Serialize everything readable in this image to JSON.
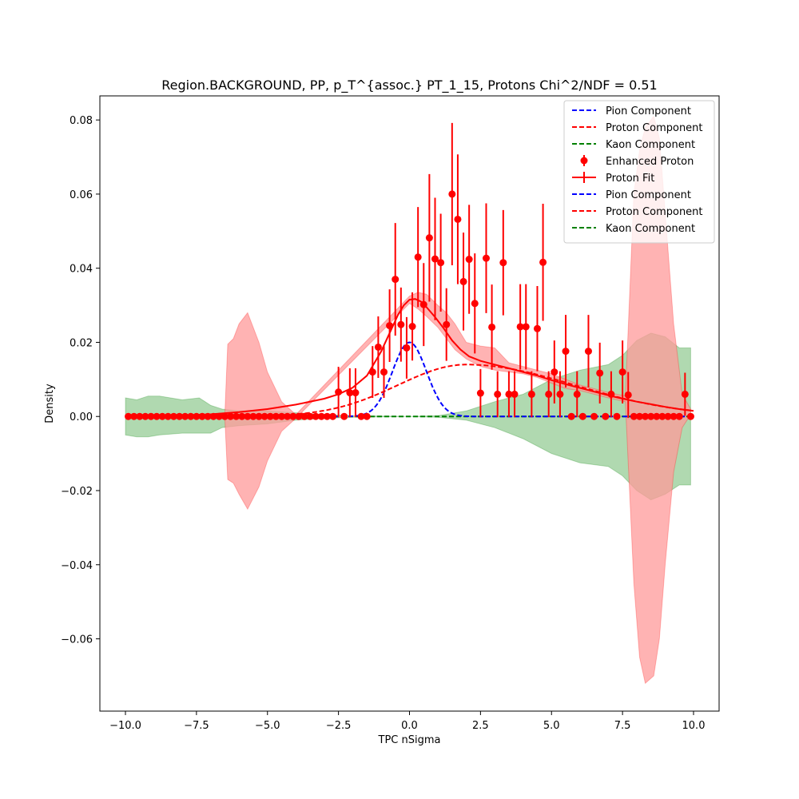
{
  "chart_data": {
    "type": "scatter",
    "title": "Region.BACKGROUND, PP, p_T^{assoc.} PT_1_15, Protons Chi^2/NDF = 0.51",
    "xlabel": "TPC nSigma",
    "ylabel": "Density",
    "xlim": [
      -10.9,
      10.9
    ],
    "ylim": [
      -0.0795,
      0.0865
    ],
    "xticks": [
      -10.0,
      -7.5,
      -5.0,
      -2.5,
      0.0,
      2.5,
      5.0,
      7.5,
      10.0
    ],
    "xtick_labels": [
      "−10.0",
      "−7.5",
      "−5.0",
      "−2.5",
      "0.0",
      "2.5",
      "5.0",
      "7.5",
      "10.0"
    ],
    "yticks": [
      -0.06,
      -0.04,
      -0.02,
      0.0,
      0.02,
      0.04,
      0.06,
      0.08
    ],
    "ytick_labels": [
      "−0.06",
      "−0.04",
      "−0.02",
      "0.00",
      "0.02",
      "0.04",
      "0.06",
      "0.08"
    ],
    "grid": false,
    "legend_position": "upper right",
    "legend": [
      {
        "label": "Pion Component",
        "color": "#0000ff",
        "style": "dashed"
      },
      {
        "label": "Proton Component",
        "color": "#ff0000",
        "style": "dashed"
      },
      {
        "label": "Kaon Component",
        "color": "#008000",
        "style": "dashed"
      },
      {
        "label": "Enhanced Proton",
        "color": "#ff0000",
        "style": "errorbar"
      },
      {
        "label": "Proton Fit",
        "color": "#ff0000",
        "style": "line"
      },
      {
        "label": "Pion Component",
        "color": "#0000ff",
        "style": "dashed"
      },
      {
        "label": "Proton Component",
        "color": "#ff0000",
        "style": "dashed"
      },
      {
        "label": "Kaon Component",
        "color": "#008000",
        "style": "dashed"
      }
    ],
    "models": {
      "pion": {
        "amplitude": 0.02,
        "mean": 0.0,
        "sigma": 0.6
      },
      "proton": {
        "amplitude": 0.014,
        "mean": 2.0,
        "sigma_left": 2.4,
        "sigma_right": 3.8
      },
      "kaon": {
        "value": 0.0
      }
    },
    "red_band": [
      {
        "x": -6.5,
        "low": -0.0005,
        "high": 0.0005
      },
      {
        "x": -6.4,
        "low": -0.017,
        "high": 0.0195
      },
      {
        "x": -6.2,
        "low": -0.018,
        "high": 0.021
      },
      {
        "x": -6.0,
        "low": -0.021,
        "high": 0.025
      },
      {
        "x": -5.7,
        "low": -0.025,
        "high": 0.028
      },
      {
        "x": -5.3,
        "low": -0.019,
        "high": 0.02
      },
      {
        "x": -5.0,
        "low": -0.012,
        "high": 0.012
      },
      {
        "x": -4.5,
        "low": -0.004,
        "high": 0.004
      },
      {
        "x": -4.0,
        "low": -0.0005,
        "high": 0.0005
      },
      {
        "x": 0.0,
        "low": 0.0305,
        "high": 0.0325
      },
      {
        "x": 0.3,
        "low": 0.029,
        "high": 0.0335
      },
      {
        "x": 0.6,
        "low": 0.027,
        "high": 0.033
      },
      {
        "x": 1.0,
        "low": 0.024,
        "high": 0.03
      },
      {
        "x": 1.3,
        "low": 0.021,
        "high": 0.028
      },
      {
        "x": 1.6,
        "low": 0.018,
        "high": 0.025
      },
      {
        "x": 2.0,
        "low": 0.0155,
        "high": 0.02
      },
      {
        "x": 2.5,
        "low": 0.0135,
        "high": 0.019
      },
      {
        "x": 3.0,
        "low": 0.0125,
        "high": 0.0185
      },
      {
        "x": 3.5,
        "low": 0.012,
        "high": 0.0145
      },
      {
        "x": 4.0,
        "low": 0.0115,
        "high": 0.0135
      },
      {
        "x": 4.5,
        "low": 0.0105,
        "high": 0.0125
      },
      {
        "x": 5.0,
        "low": 0.009,
        "high": 0.0115
      },
      {
        "x": 5.5,
        "low": 0.0075,
        "high": 0.01
      },
      {
        "x": 6.0,
        "low": 0.007,
        "high": 0.0085
      },
      {
        "x": 7.0,
        "low": 0.005,
        "high": 0.0065
      },
      {
        "x": 7.6,
        "low": 0.004,
        "high": 0.0055
      },
      {
        "x": 7.9,
        "low": -0.045,
        "high": 0.06
      },
      {
        "x": 8.1,
        "low": -0.065,
        "high": 0.072
      },
      {
        "x": 8.3,
        "low": -0.072,
        "high": 0.078
      },
      {
        "x": 8.6,
        "low": -0.07,
        "high": 0.081
      },
      {
        "x": 8.8,
        "low": -0.06,
        "high": 0.075
      },
      {
        "x": 9.0,
        "low": -0.04,
        "high": 0.055
      },
      {
        "x": 9.3,
        "low": -0.015,
        "high": 0.025
      },
      {
        "x": 9.6,
        "low": -0.003,
        "high": 0.006
      },
      {
        "x": 9.9,
        "low": 0.0005,
        "high": 0.002
      }
    ],
    "green_band": [
      {
        "x": -10.0,
        "low": -0.005,
        "high": 0.005
      },
      {
        "x": -9.6,
        "low": -0.0055,
        "high": 0.0045
      },
      {
        "x": -9.2,
        "low": -0.0055,
        "high": 0.0055
      },
      {
        "x": -8.8,
        "low": -0.005,
        "high": 0.0055
      },
      {
        "x": -8.0,
        "low": -0.0045,
        "high": 0.0045
      },
      {
        "x": -7.4,
        "low": -0.0045,
        "high": 0.005
      },
      {
        "x": -7.0,
        "low": -0.0045,
        "high": 0.003
      },
      {
        "x": -6.6,
        "low": -0.003,
        "high": 0.002
      },
      {
        "x": -6.0,
        "low": -0.0025,
        "high": 0.0015
      },
      {
        "x": -5.0,
        "low": -0.002,
        "high": 0.0015
      },
      {
        "x": -4.0,
        "low": -0.001,
        "high": 0.001
      },
      {
        "x": -3.0,
        "low": -0.0005,
        "high": 0.0005
      },
      {
        "x": -2.0,
        "low": -0.0002,
        "high": 0.0002
      },
      {
        "x": 0.0,
        "low": 0.0,
        "high": 0.0
      },
      {
        "x": 1.0,
        "low": -0.0002,
        "high": 0.0002
      },
      {
        "x": 2.0,
        "low": -0.001,
        "high": 0.0015
      },
      {
        "x": 3.0,
        "low": -0.003,
        "high": 0.004
      },
      {
        "x": 4.0,
        "low": -0.006,
        "high": 0.006
      },
      {
        "x": 5.0,
        "low": -0.01,
        "high": 0.01
      },
      {
        "x": 6.0,
        "low": -0.0125,
        "high": 0.0125
      },
      {
        "x": 7.0,
        "low": -0.0135,
        "high": 0.014
      },
      {
        "x": 7.5,
        "low": -0.016,
        "high": 0.0165
      },
      {
        "x": 8.0,
        "low": -0.02,
        "high": 0.0205
      },
      {
        "x": 8.5,
        "low": -0.0225,
        "high": 0.0225
      },
      {
        "x": 9.0,
        "low": -0.021,
        "high": 0.0215
      },
      {
        "x": 9.5,
        "low": -0.0185,
        "high": 0.0185
      },
      {
        "x": 9.9,
        "low": -0.0185,
        "high": 0.0185
      }
    ],
    "fit_curve_x": [
      -10.0,
      -9.0,
      -8.0,
      -7.0,
      -6.0,
      -5.0,
      -4.0,
      -3.0,
      -2.5,
      -2.0,
      -1.5,
      -1.0,
      -0.7,
      -0.4,
      -0.2,
      0.0,
      0.2,
      0.4,
      0.6,
      0.9,
      1.2,
      1.5,
      1.8,
      2.1,
      2.5,
      3.0,
      3.5,
      4.0,
      4.5,
      5.0,
      5.5,
      6.0,
      6.5,
      7.0,
      7.5,
      8.0,
      8.5,
      9.0,
      9.5,
      10.0
    ],
    "fit_curve_y": [
      0.0,
      0.0001,
      0.0003,
      0.0006,
      0.0012,
      0.002,
      0.0032,
      0.0048,
      0.006,
      0.0078,
      0.011,
      0.0175,
      0.0225,
      0.0275,
      0.03,
      0.0315,
      0.0317,
      0.031,
      0.0295,
      0.0268,
      0.0238,
      0.0205,
      0.018,
      0.0162,
      0.015,
      0.014,
      0.013,
      0.012,
      0.011,
      0.0098,
      0.0087,
      0.0077,
      0.0067,
      0.0057,
      0.0048,
      0.004,
      0.0033,
      0.0026,
      0.002,
      0.0015
    ],
    "points": [
      {
        "x": -9.9,
        "y": 0.0,
        "err": 0.0
      },
      {
        "x": -9.7,
        "y": 0.0,
        "err": 0.0
      },
      {
        "x": -9.5,
        "y": 0.0,
        "err": 0.0
      },
      {
        "x": -9.3,
        "y": 0.0,
        "err": 0.0
      },
      {
        "x": -9.1,
        "y": 0.0,
        "err": 0.0
      },
      {
        "x": -8.9,
        "y": 0.0,
        "err": 0.0
      },
      {
        "x": -8.7,
        "y": 0.0,
        "err": 0.0
      },
      {
        "x": -8.5,
        "y": 0.0,
        "err": 0.0
      },
      {
        "x": -8.3,
        "y": 0.0,
        "err": 0.0
      },
      {
        "x": -8.1,
        "y": 0.0,
        "err": 0.0
      },
      {
        "x": -7.9,
        "y": 0.0,
        "err": 0.0
      },
      {
        "x": -7.7,
        "y": 0.0,
        "err": 0.0
      },
      {
        "x": -7.5,
        "y": 0.0,
        "err": 0.0
      },
      {
        "x": -7.3,
        "y": 0.0,
        "err": 0.0
      },
      {
        "x": -7.1,
        "y": 0.0,
        "err": 0.0
      },
      {
        "x": -6.9,
        "y": 0.0,
        "err": 0.0
      },
      {
        "x": -6.7,
        "y": 0.0,
        "err": 0.0
      },
      {
        "x": -6.5,
        "y": 0.0,
        "err": 0.0
      },
      {
        "x": -6.3,
        "y": 0.0,
        "err": 0.0
      },
      {
        "x": -6.1,
        "y": 0.0,
        "err": 0.0
      },
      {
        "x": -5.9,
        "y": 0.0,
        "err": 0.0
      },
      {
        "x": -5.7,
        "y": 0.0,
        "err": 0.0
      },
      {
        "x": -5.5,
        "y": 0.0,
        "err": 0.0
      },
      {
        "x": -5.3,
        "y": 0.0,
        "err": 0.0
      },
      {
        "x": -5.1,
        "y": 0.0,
        "err": 0.0
      },
      {
        "x": -4.9,
        "y": 0.0,
        "err": 0.0
      },
      {
        "x": -4.7,
        "y": 0.0,
        "err": 0.0
      },
      {
        "x": -4.5,
        "y": 0.0,
        "err": 0.0
      },
      {
        "x": -4.3,
        "y": 0.0,
        "err": 0.0
      },
      {
        "x": -4.1,
        "y": 0.0,
        "err": 0.0
      },
      {
        "x": -3.9,
        "y": 0.0,
        "err": 0.0
      },
      {
        "x": -3.7,
        "y": 0.0,
        "err": 0.0
      },
      {
        "x": -3.5,
        "y": 0.0,
        "err": 0.0
      },
      {
        "x": -3.3,
        "y": 0.0,
        "err": 0.0
      },
      {
        "x": -3.1,
        "y": 0.0,
        "err": 0.0
      },
      {
        "x": -2.9,
        "y": 0.0,
        "err": 0.0
      },
      {
        "x": -2.7,
        "y": 0.0,
        "err": 0.0
      },
      {
        "x": -2.5,
        "y": 0.0066,
        "err": 0.0068
      },
      {
        "x": -2.3,
        "y": 0.0,
        "err": 0.0
      },
      {
        "x": -2.1,
        "y": 0.0064,
        "err": 0.0066
      },
      {
        "x": -1.9,
        "y": 0.0064,
        "err": 0.0066
      },
      {
        "x": -1.7,
        "y": 0.0,
        "err": 0.0
      },
      {
        "x": -1.5,
        "y": 0.0,
        "err": 0.0
      },
      {
        "x": -1.3,
        "y": 0.012,
        "err": 0.007
      },
      {
        "x": -1.1,
        "y": 0.0187,
        "err": 0.0083
      },
      {
        "x": -0.9,
        "y": 0.012,
        "err": 0.007
      },
      {
        "x": -0.7,
        "y": 0.0245,
        "err": 0.0098
      },
      {
        "x": -0.5,
        "y": 0.037,
        "err": 0.0152
      },
      {
        "x": -0.3,
        "y": 0.0248,
        "err": 0.01
      },
      {
        "x": -0.1,
        "y": 0.0185,
        "err": 0.0083
      },
      {
        "x": 0.1,
        "y": 0.0243,
        "err": 0.0092
      },
      {
        "x": 0.3,
        "y": 0.043,
        "err": 0.0135
      },
      {
        "x": 0.5,
        "y": 0.0302,
        "err": 0.0112
      },
      {
        "x": 0.7,
        "y": 0.0482,
        "err": 0.0172
      },
      {
        "x": 0.9,
        "y": 0.0425,
        "err": 0.0165
      },
      {
        "x": 1.1,
        "y": 0.0415,
        "err": 0.0132
      },
      {
        "x": 1.3,
        "y": 0.0248,
        "err": 0.0098
      },
      {
        "x": 1.5,
        "y": 0.06,
        "err": 0.0192
      },
      {
        "x": 1.7,
        "y": 0.0532,
        "err": 0.0175
      },
      {
        "x": 1.9,
        "y": 0.0364,
        "err": 0.0132
      },
      {
        "x": 2.1,
        "y": 0.0424,
        "err": 0.0147
      },
      {
        "x": 2.3,
        "y": 0.0305,
        "err": 0.0135
      },
      {
        "x": 2.5,
        "y": 0.0063,
        "err": 0.0065
      },
      {
        "x": 2.7,
        "y": 0.0427,
        "err": 0.0148
      },
      {
        "x": 2.9,
        "y": 0.0241,
        "err": 0.0115
      },
      {
        "x": 3.1,
        "y": 0.006,
        "err": 0.0062
      },
      {
        "x": 3.3,
        "y": 0.0415,
        "err": 0.0142
      },
      {
        "x": 3.5,
        "y": 0.006,
        "err": 0.0062
      },
      {
        "x": 3.7,
        "y": 0.006,
        "err": 0.0062
      },
      {
        "x": 3.9,
        "y": 0.0242,
        "err": 0.0115
      },
      {
        "x": 4.1,
        "y": 0.0242,
        "err": 0.0115
      },
      {
        "x": 4.3,
        "y": 0.006,
        "err": 0.0062
      },
      {
        "x": 4.5,
        "y": 0.0237,
        "err": 0.0115
      },
      {
        "x": 4.7,
        "y": 0.0416,
        "err": 0.0158
      },
      {
        "x": 4.9,
        "y": 0.006,
        "err": 0.0062
      },
      {
        "x": 5.1,
        "y": 0.012,
        "err": 0.0085
      },
      {
        "x": 5.3,
        "y": 0.006,
        "err": 0.0062
      },
      {
        "x": 5.5,
        "y": 0.0176,
        "err": 0.0098
      },
      {
        "x": 5.7,
        "y": 0.0,
        "err": 0.0
      },
      {
        "x": 5.9,
        "y": 0.006,
        "err": 0.0062
      },
      {
        "x": 6.1,
        "y": 0.0,
        "err": 0.0
      },
      {
        "x": 6.3,
        "y": 0.0176,
        "err": 0.0098
      },
      {
        "x": 6.5,
        "y": 0.0,
        "err": 0.0
      },
      {
        "x": 6.7,
        "y": 0.0117,
        "err": 0.0082
      },
      {
        "x": 6.9,
        "y": 0.0,
        "err": 0.0
      },
      {
        "x": 7.1,
        "y": 0.006,
        "err": 0.0062
      },
      {
        "x": 7.3,
        "y": 0.0,
        "err": 0.0
      },
      {
        "x": 7.5,
        "y": 0.012,
        "err": 0.0085
      },
      {
        "x": 7.7,
        "y": 0.0058,
        "err": 0.0062
      },
      {
        "x": 7.9,
        "y": 0.0,
        "err": 0.0
      },
      {
        "x": 8.1,
        "y": 0.0,
        "err": 0.0
      },
      {
        "x": 8.3,
        "y": 0.0,
        "err": 0.0
      },
      {
        "x": 8.5,
        "y": 0.0,
        "err": 0.0
      },
      {
        "x": 8.7,
        "y": 0.0,
        "err": 0.0
      },
      {
        "x": 8.9,
        "y": 0.0,
        "err": 0.0
      },
      {
        "x": 9.1,
        "y": 0.0,
        "err": 0.0
      },
      {
        "x": 9.3,
        "y": 0.0,
        "err": 0.0
      },
      {
        "x": 9.5,
        "y": 0.0,
        "err": 0.0
      },
      {
        "x": 9.7,
        "y": 0.006,
        "err": 0.0058
      },
      {
        "x": 9.9,
        "y": 0.0,
        "err": 0.0
      }
    ],
    "colors": {
      "pion": "#0000ff",
      "proton": "#ff0000",
      "kaon": "#008000",
      "red_band_fill": "#ff9999",
      "green_band_fill": "#8fc98f"
    }
  }
}
